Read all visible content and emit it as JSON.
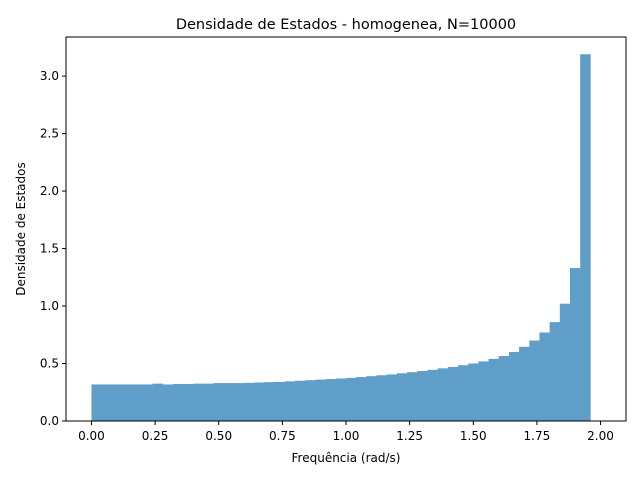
{
  "chart_data": {
    "type": "bar",
    "title": "Densidade de Estados - homogenea, N=10000",
    "xlabel": "Frequência (rad/s)",
    "ylabel": "Densidade de Estados",
    "xlim": [
      -0.1,
      2.1
    ],
    "ylim": [
      0,
      3.34
    ],
    "xticks": [
      "0.00",
      "0.25",
      "0.50",
      "0.75",
      "1.00",
      "1.25",
      "1.50",
      "1.75",
      "2.00"
    ],
    "yticks": [
      "0.0",
      "0.5",
      "1.0",
      "1.5",
      "2.0",
      "2.5",
      "3.0"
    ],
    "grid": false,
    "bar_color": "#5f9ec9",
    "bin_edges_start": 0.0,
    "bin_width": 0.04,
    "values": [
      0.318,
      0.318,
      0.318,
      0.318,
      0.318,
      0.318,
      0.325,
      0.318,
      0.322,
      0.322,
      0.325,
      0.325,
      0.33,
      0.33,
      0.33,
      0.332,
      0.335,
      0.338,
      0.34,
      0.345,
      0.35,
      0.355,
      0.36,
      0.365,
      0.37,
      0.375,
      0.382,
      0.39,
      0.398,
      0.405,
      0.415,
      0.425,
      0.435,
      0.445,
      0.458,
      0.47,
      0.485,
      0.5,
      0.518,
      0.54,
      0.565,
      0.6,
      0.645,
      0.7,
      0.77,
      0.86,
      1.02,
      1.33,
      3.19,
      0
    ]
  }
}
